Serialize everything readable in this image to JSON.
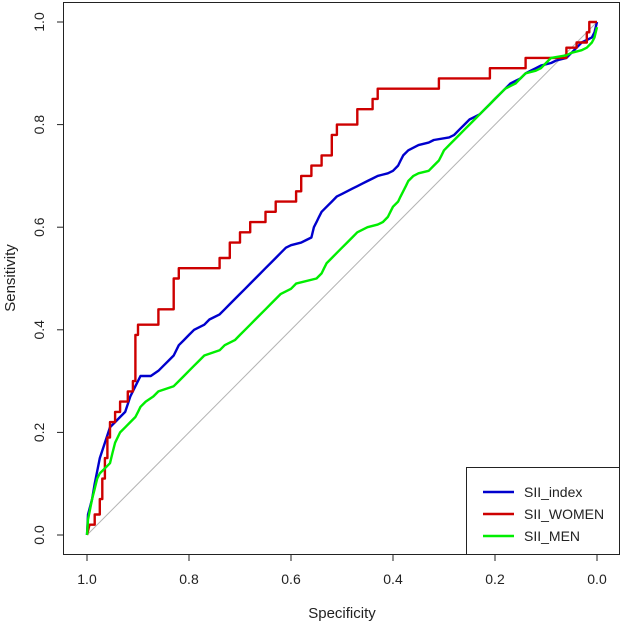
{
  "chart_data": {
    "type": "line",
    "title": "",
    "xlabel": "Specificity",
    "ylabel": "Sensitivity",
    "xlim": [
      1.0,
      0.0
    ],
    "ylim": [
      0.0,
      1.0
    ],
    "x_reversed": true,
    "xticks": [
      "1.0",
      "0.8",
      "0.6",
      "0.4",
      "0.2",
      "0.0"
    ],
    "yticks": [
      "0.0",
      "0.2",
      "0.4",
      "0.6",
      "0.8",
      "1.0"
    ],
    "grid": false,
    "legend_position": "bottom-right",
    "reference_line": {
      "color": "#b4b4b4",
      "from": [
        1.0,
        0.0
      ],
      "to": [
        0.0,
        1.0
      ]
    },
    "series": [
      {
        "name": "SII_index",
        "color": "#0000cd",
        "points": [
          [
            1.0,
            0.0
          ],
          [
            0.998,
            0.04
          ],
          [
            0.99,
            0.07
          ],
          [
            0.985,
            0.1
          ],
          [
            0.975,
            0.15
          ],
          [
            0.965,
            0.18
          ],
          [
            0.955,
            0.21
          ],
          [
            0.945,
            0.22
          ],
          [
            0.935,
            0.23
          ],
          [
            0.925,
            0.24
          ],
          [
            0.915,
            0.27
          ],
          [
            0.905,
            0.29
          ],
          [
            0.895,
            0.31
          ],
          [
            0.875,
            0.31
          ],
          [
            0.86,
            0.32
          ],
          [
            0.85,
            0.33
          ],
          [
            0.84,
            0.34
          ],
          [
            0.83,
            0.35
          ],
          [
            0.82,
            0.37
          ],
          [
            0.81,
            0.38
          ],
          [
            0.8,
            0.39
          ],
          [
            0.79,
            0.4
          ],
          [
            0.77,
            0.41
          ],
          [
            0.76,
            0.42
          ],
          [
            0.74,
            0.43
          ],
          [
            0.73,
            0.44
          ],
          [
            0.72,
            0.45
          ],
          [
            0.71,
            0.46
          ],
          [
            0.7,
            0.47
          ],
          [
            0.69,
            0.48
          ],
          [
            0.68,
            0.49
          ],
          [
            0.67,
            0.5
          ],
          [
            0.66,
            0.51
          ],
          [
            0.65,
            0.52
          ],
          [
            0.64,
            0.53
          ],
          [
            0.63,
            0.54
          ],
          [
            0.62,
            0.55
          ],
          [
            0.61,
            0.56
          ],
          [
            0.6,
            0.565
          ],
          [
            0.58,
            0.57
          ],
          [
            0.57,
            0.575
          ],
          [
            0.56,
            0.58
          ],
          [
            0.555,
            0.6
          ],
          [
            0.55,
            0.61
          ],
          [
            0.545,
            0.62
          ],
          [
            0.54,
            0.63
          ],
          [
            0.53,
            0.64
          ],
          [
            0.52,
            0.65
          ],
          [
            0.51,
            0.66
          ],
          [
            0.5,
            0.665
          ],
          [
            0.49,
            0.67
          ],
          [
            0.48,
            0.675
          ],
          [
            0.47,
            0.68
          ],
          [
            0.46,
            0.685
          ],
          [
            0.45,
            0.69
          ],
          [
            0.44,
            0.695
          ],
          [
            0.43,
            0.7
          ],
          [
            0.41,
            0.705
          ],
          [
            0.4,
            0.71
          ],
          [
            0.39,
            0.72
          ],
          [
            0.385,
            0.73
          ],
          [
            0.38,
            0.74
          ],
          [
            0.37,
            0.75
          ],
          [
            0.36,
            0.755
          ],
          [
            0.35,
            0.76
          ],
          [
            0.33,
            0.765
          ],
          [
            0.32,
            0.77
          ],
          [
            0.29,
            0.775
          ],
          [
            0.28,
            0.78
          ],
          [
            0.27,
            0.79
          ],
          [
            0.26,
            0.8
          ],
          [
            0.25,
            0.81
          ],
          [
            0.24,
            0.815
          ],
          [
            0.23,
            0.82
          ],
          [
            0.22,
            0.83
          ],
          [
            0.21,
            0.84
          ],
          [
            0.2,
            0.85
          ],
          [
            0.19,
            0.86
          ],
          [
            0.18,
            0.87
          ],
          [
            0.17,
            0.88
          ],
          [
            0.16,
            0.885
          ],
          [
            0.15,
            0.89
          ],
          [
            0.14,
            0.9
          ],
          [
            0.13,
            0.905
          ],
          [
            0.12,
            0.91
          ],
          [
            0.11,
            0.915
          ],
          [
            0.09,
            0.92
          ],
          [
            0.08,
            0.925
          ],
          [
            0.06,
            0.93
          ],
          [
            0.05,
            0.94
          ],
          [
            0.04,
            0.95
          ],
          [
            0.03,
            0.96
          ],
          [
            0.02,
            0.965
          ],
          [
            0.01,
            0.97
          ],
          [
            0.005,
            0.98
          ],
          [
            0.0,
            1.0
          ]
        ]
      },
      {
        "name": "SII_WOMEN",
        "color": "#cd0000",
        "points": [
          [
            1.0,
            0.0
          ],
          [
            0.995,
            0.02
          ],
          [
            0.985,
            0.02
          ],
          [
            0.985,
            0.04
          ],
          [
            0.975,
            0.04
          ],
          [
            0.975,
            0.07
          ],
          [
            0.97,
            0.07
          ],
          [
            0.97,
            0.11
          ],
          [
            0.965,
            0.11
          ],
          [
            0.965,
            0.15
          ],
          [
            0.96,
            0.15
          ],
          [
            0.96,
            0.19
          ],
          [
            0.955,
            0.19
          ],
          [
            0.955,
            0.22
          ],
          [
            0.945,
            0.22
          ],
          [
            0.945,
            0.24
          ],
          [
            0.935,
            0.24
          ],
          [
            0.935,
            0.26
          ],
          [
            0.92,
            0.26
          ],
          [
            0.92,
            0.28
          ],
          [
            0.91,
            0.28
          ],
          [
            0.91,
            0.3
          ],
          [
            0.905,
            0.3
          ],
          [
            0.905,
            0.39
          ],
          [
            0.9,
            0.39
          ],
          [
            0.9,
            0.41
          ],
          [
            0.86,
            0.41
          ],
          [
            0.86,
            0.44
          ],
          [
            0.83,
            0.44
          ],
          [
            0.83,
            0.5
          ],
          [
            0.82,
            0.5
          ],
          [
            0.82,
            0.52
          ],
          [
            0.74,
            0.52
          ],
          [
            0.74,
            0.54
          ],
          [
            0.72,
            0.54
          ],
          [
            0.72,
            0.57
          ],
          [
            0.7,
            0.57
          ],
          [
            0.7,
            0.59
          ],
          [
            0.68,
            0.59
          ],
          [
            0.68,
            0.61
          ],
          [
            0.65,
            0.61
          ],
          [
            0.65,
            0.63
          ],
          [
            0.63,
            0.63
          ],
          [
            0.63,
            0.65
          ],
          [
            0.59,
            0.65
          ],
          [
            0.59,
            0.67
          ],
          [
            0.58,
            0.67
          ],
          [
            0.58,
            0.7
          ],
          [
            0.56,
            0.7
          ],
          [
            0.56,
            0.72
          ],
          [
            0.54,
            0.72
          ],
          [
            0.54,
            0.74
          ],
          [
            0.52,
            0.74
          ],
          [
            0.52,
            0.78
          ],
          [
            0.51,
            0.78
          ],
          [
            0.51,
            0.8
          ],
          [
            0.47,
            0.8
          ],
          [
            0.47,
            0.83
          ],
          [
            0.44,
            0.83
          ],
          [
            0.44,
            0.85
          ],
          [
            0.43,
            0.85
          ],
          [
            0.43,
            0.87
          ],
          [
            0.31,
            0.87
          ],
          [
            0.31,
            0.89
          ],
          [
            0.21,
            0.89
          ],
          [
            0.21,
            0.91
          ],
          [
            0.14,
            0.91
          ],
          [
            0.14,
            0.93
          ],
          [
            0.06,
            0.93
          ],
          [
            0.06,
            0.95
          ],
          [
            0.04,
            0.95
          ],
          [
            0.04,
            0.96
          ],
          [
            0.02,
            0.96
          ],
          [
            0.02,
            0.98
          ],
          [
            0.015,
            0.98
          ],
          [
            0.015,
            1.0
          ],
          [
            0.0,
            1.0
          ]
        ]
      },
      {
        "name": "SII_MEN",
        "color": "#00ee00",
        "points": [
          [
            1.0,
            0.0
          ],
          [
            0.998,
            0.03
          ],
          [
            0.99,
            0.07
          ],
          [
            0.985,
            0.09
          ],
          [
            0.98,
            0.11
          ],
          [
            0.975,
            0.12
          ],
          [
            0.965,
            0.13
          ],
          [
            0.955,
            0.14
          ],
          [
            0.95,
            0.16
          ],
          [
            0.945,
            0.18
          ],
          [
            0.935,
            0.2
          ],
          [
            0.925,
            0.21
          ],
          [
            0.915,
            0.22
          ],
          [
            0.905,
            0.23
          ],
          [
            0.9,
            0.24
          ],
          [
            0.895,
            0.25
          ],
          [
            0.885,
            0.26
          ],
          [
            0.87,
            0.27
          ],
          [
            0.86,
            0.28
          ],
          [
            0.83,
            0.29
          ],
          [
            0.82,
            0.3
          ],
          [
            0.81,
            0.31
          ],
          [
            0.8,
            0.32
          ],
          [
            0.79,
            0.33
          ],
          [
            0.78,
            0.34
          ],
          [
            0.77,
            0.35
          ],
          [
            0.74,
            0.36
          ],
          [
            0.73,
            0.37
          ],
          [
            0.71,
            0.38
          ],
          [
            0.7,
            0.39
          ],
          [
            0.69,
            0.4
          ],
          [
            0.68,
            0.41
          ],
          [
            0.67,
            0.42
          ],
          [
            0.66,
            0.43
          ],
          [
            0.65,
            0.44
          ],
          [
            0.64,
            0.45
          ],
          [
            0.63,
            0.46
          ],
          [
            0.62,
            0.47
          ],
          [
            0.6,
            0.48
          ],
          [
            0.59,
            0.49
          ],
          [
            0.55,
            0.5
          ],
          [
            0.54,
            0.51
          ],
          [
            0.535,
            0.52
          ],
          [
            0.53,
            0.53
          ],
          [
            0.52,
            0.54
          ],
          [
            0.51,
            0.55
          ],
          [
            0.5,
            0.56
          ],
          [
            0.49,
            0.57
          ],
          [
            0.48,
            0.58
          ],
          [
            0.47,
            0.59
          ],
          [
            0.45,
            0.6
          ],
          [
            0.43,
            0.605
          ],
          [
            0.42,
            0.61
          ],
          [
            0.41,
            0.62
          ],
          [
            0.405,
            0.63
          ],
          [
            0.4,
            0.64
          ],
          [
            0.39,
            0.65
          ],
          [
            0.385,
            0.66
          ],
          [
            0.38,
            0.67
          ],
          [
            0.375,
            0.68
          ],
          [
            0.37,
            0.69
          ],
          [
            0.36,
            0.7
          ],
          [
            0.35,
            0.705
          ],
          [
            0.33,
            0.71
          ],
          [
            0.32,
            0.72
          ],
          [
            0.31,
            0.73
          ],
          [
            0.305,
            0.74
          ],
          [
            0.3,
            0.75
          ],
          [
            0.29,
            0.76
          ],
          [
            0.28,
            0.77
          ],
          [
            0.27,
            0.78
          ],
          [
            0.26,
            0.79
          ],
          [
            0.25,
            0.8
          ],
          [
            0.24,
            0.81
          ],
          [
            0.23,
            0.82
          ],
          [
            0.22,
            0.83
          ],
          [
            0.21,
            0.84
          ],
          [
            0.2,
            0.85
          ],
          [
            0.19,
            0.86
          ],
          [
            0.18,
            0.87
          ],
          [
            0.17,
            0.875
          ],
          [
            0.16,
            0.88
          ],
          [
            0.15,
            0.89
          ],
          [
            0.14,
            0.9
          ],
          [
            0.12,
            0.905
          ],
          [
            0.11,
            0.91
          ],
          [
            0.1,
            0.92
          ],
          [
            0.09,
            0.93
          ],
          [
            0.06,
            0.935
          ],
          [
            0.05,
            0.94
          ],
          [
            0.03,
            0.945
          ],
          [
            0.02,
            0.95
          ],
          [
            0.01,
            0.96
          ],
          [
            0.005,
            0.97
          ],
          [
            0.0,
            0.99
          ]
        ]
      }
    ]
  },
  "legend": {
    "items": [
      {
        "label": "SII_index",
        "color": "#0000cd"
      },
      {
        "label": "SII_WOMEN",
        "color": "#cd0000"
      },
      {
        "label": "SII_MEN",
        "color": "#00ee00"
      }
    ]
  }
}
